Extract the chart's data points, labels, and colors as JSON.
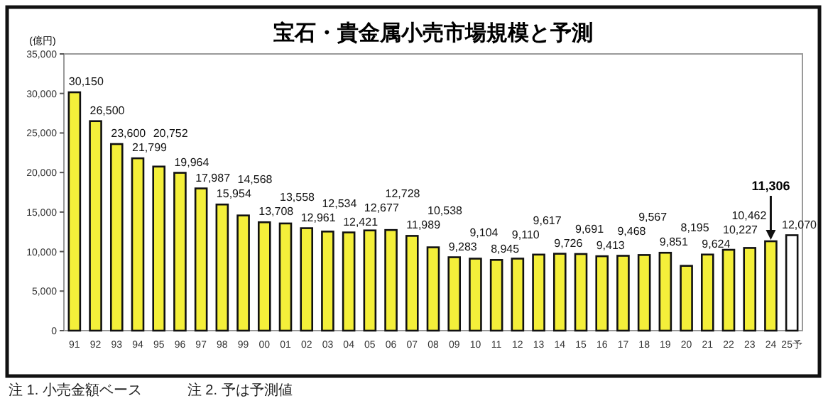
{
  "chart_data": {
    "type": "bar",
    "title": "宝石・貴金属小売市場規模と予測",
    "ylabel": "(億円)",
    "categories": [
      "91",
      "92",
      "93",
      "94",
      "95",
      "96",
      "97",
      "98",
      "99",
      "00",
      "01",
      "02",
      "03",
      "04",
      "05",
      "06",
      "07",
      "08",
      "09",
      "10",
      "11",
      "12",
      "13",
      "14",
      "15",
      "16",
      "17",
      "18",
      "19",
      "20",
      "21",
      "22",
      "23",
      "24",
      "25予"
    ],
    "values": [
      30150,
      26500,
      23600,
      21799,
      20752,
      19964,
      17987,
      15954,
      14568,
      13708,
      13558,
      12961,
      12534,
      12421,
      12677,
      12728,
      11989,
      10538,
      9283,
      9104,
      8945,
      9110,
      9617,
      9726,
      9691,
      9413,
      9468,
      9567,
      9851,
      8195,
      9624,
      10227,
      10462,
      11306,
      12070
    ],
    "colors": [
      "#f4ef3a",
      "#f4ef3a",
      "#f4ef3a",
      "#f4ef3a",
      "#f4ef3a",
      "#f4ef3a",
      "#f4ef3a",
      "#f4ef3a",
      "#f4ef3a",
      "#f4ef3a",
      "#f4ef3a",
      "#f4ef3a",
      "#f4ef3a",
      "#f4ef3a",
      "#f4ef3a",
      "#f4ef3a",
      "#f4ef3a",
      "#f4ef3a",
      "#f4ef3a",
      "#f4ef3a",
      "#f4ef3a",
      "#f4ef3a",
      "#f4ef3a",
      "#f4ef3a",
      "#f4ef3a",
      "#f4ef3a",
      "#f4ef3a",
      "#f4ef3a",
      "#f4ef3a",
      "#f4ef3a",
      "#f4ef3a",
      "#f4ef3a",
      "#f4ef3a",
      "#f4ef3a",
      "#ffffff"
    ],
    "value_labels": [
      "30,150",
      "26,500",
      "23,600",
      "21,799",
      "20,752",
      "19,964",
      "17,987",
      "15,954",
      "14,568",
      "13,708",
      "13,558",
      "12,961",
      "12,534",
      "12,421",
      "12,677",
      "12,728",
      "11,989",
      "10,538",
      "9,283",
      "9,104",
      "8,945",
      "9,110",
      "9,617",
      "9,726",
      "9,691",
      "9,413",
      "9,468",
      "9,567",
      "9,851",
      "8,195",
      "9,624",
      "10,227",
      "10,462",
      null,
      "12,070"
    ],
    "ylim": [
      0,
      35000
    ],
    "yticks": [
      0,
      {
        "value": 5000,
        "label": "5,000"
      },
      {
        "value": 10000,
        "label": "10,000"
      },
      {
        "value": 15000,
        "label": "15,000"
      },
      {
        "value": 20000,
        "label": "20,000"
      },
      {
        "value": 25000,
        "label": "25,000"
      },
      {
        "value": 30000,
        "label": "30,000"
      },
      {
        "value": 35000,
        "label": "35,000"
      }
    ],
    "grid": false,
    "annotations": [
      {
        "text": "11,306",
        "x": "24",
        "y": 11306
      },
      "注 1. 小売金額ベース",
      "注 2. 予は予測値"
    ]
  }
}
